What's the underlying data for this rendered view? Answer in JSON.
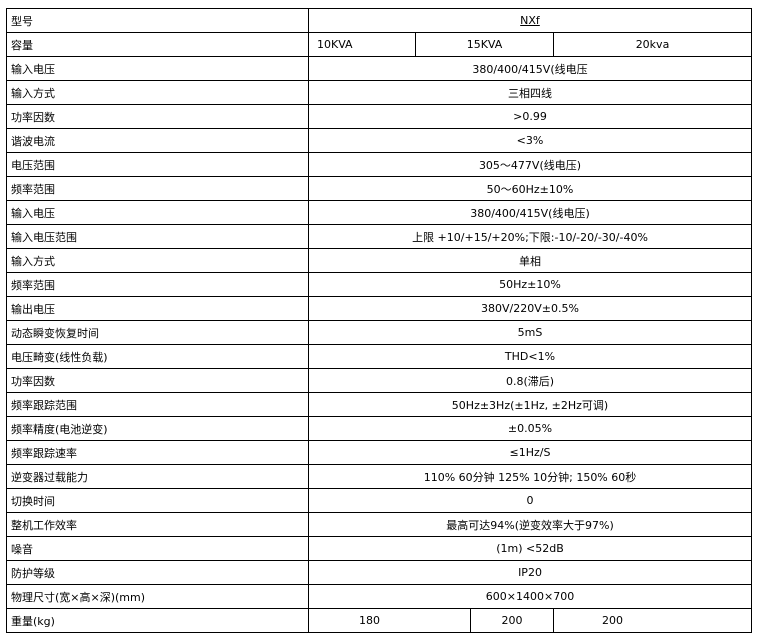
{
  "rows": [
    {
      "label": "型号",
      "value": "NXf"
    },
    {
      "label": "容量",
      "values": [
        "10KVA",
        "15KVA",
        "20kva"
      ]
    },
    {
      "label": "输入电压",
      "value": "380/400/415V(线电压"
    },
    {
      "label": "输入方式",
      "value": "三相四线"
    },
    {
      "label": "功率因数",
      "value": ">0.99"
    },
    {
      "label": "谐波电流",
      "value": "<3%"
    },
    {
      "label": "电压范围",
      "value": "305～477V(线电压)"
    },
    {
      "label": "频率范围",
      "value": "50～60Hz±10%"
    },
    {
      "label": "输入电压",
      "value": "380/400/415V(线电压)"
    },
    {
      "label": "输入电压范围",
      "value": "上限 +10/+15/+20%;下限:-10/-20/-30/-40%"
    },
    {
      "label": "输入方式",
      "value": "单相"
    },
    {
      "label": "频率范围",
      "value": "50Hz±10%"
    },
    {
      "label": "输出电压",
      "value": "380V/220V±0.5%"
    },
    {
      "label": "动态瞬变恢复时间",
      "value": "5mS"
    },
    {
      "label": "电压畸变(线性负载)",
      "value": "THD<1%"
    },
    {
      "label": "功率因数",
      "value": "0.8(滞后)"
    },
    {
      "label": "频率跟踪范围",
      "value": "50Hz±3Hz(±1Hz, ±2Hz可调)"
    },
    {
      "label": "频率精度(电池逆变)",
      "value": "±0.05%"
    },
    {
      "label": "频率跟踪速率",
      "value": "≤1Hz/S"
    },
    {
      "label": "逆变器过载能力",
      "value": "110% 60分钟 125% 10分钟; 150% 60秒"
    },
    {
      "label": "切换时间",
      "value": "0"
    },
    {
      "label": "整机工作效率",
      "value": "最高可达94%(逆变效率大于97%)"
    },
    {
      "label": "噪音",
      "value": "(1m) <52dB"
    },
    {
      "label": "防护等级",
      "value": "IP20"
    },
    {
      "label": "物理尺寸(宽×高×深)(mm)",
      "value": "600×1400×700"
    },
    {
      "label": "重量(kg)",
      "values": [
        "180",
        "200",
        "200"
      ]
    }
  ]
}
